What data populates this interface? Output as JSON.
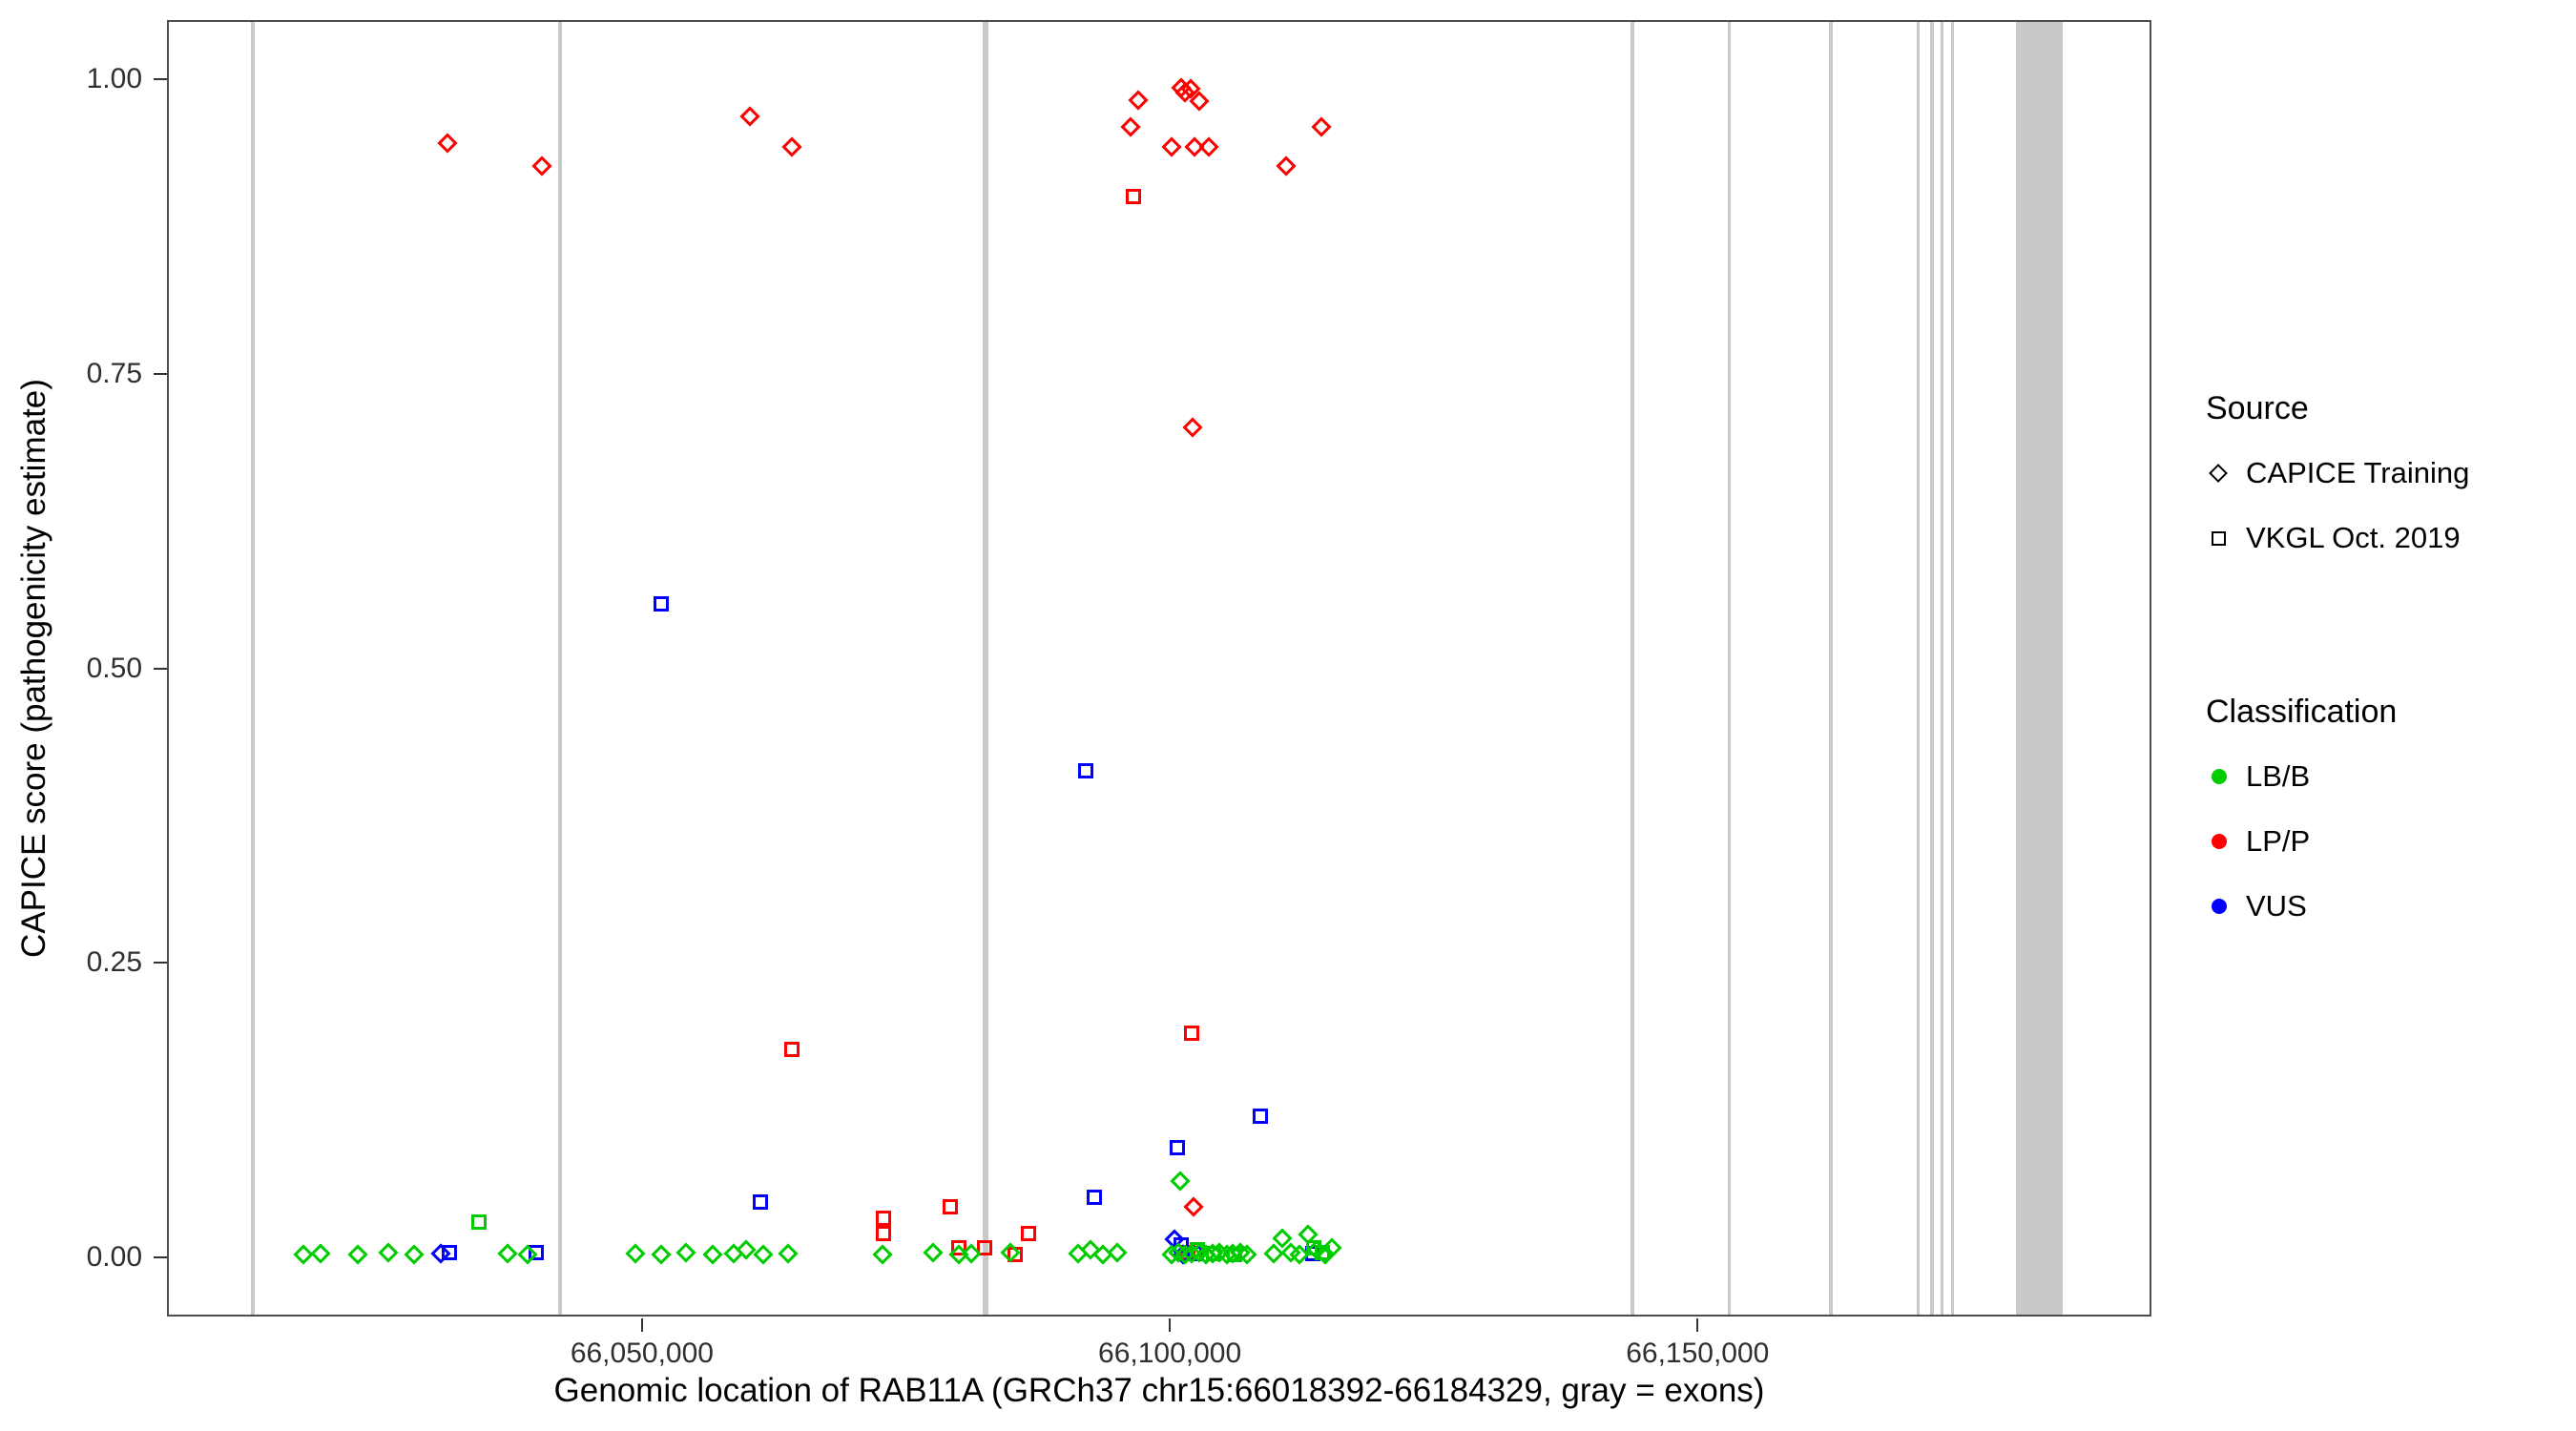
{
  "chart_data": {
    "type": "scatter",
    "title": "",
    "xlabel": "Genomic location of RAB11A (GRCh37 chr15:66018392-66184329, gray = exons)",
    "ylabel": "CAPICE score (pathogenicity estimate)",
    "grid": false,
    "legend_position": "right",
    "x_domain": [
      66005000,
      66193000
    ],
    "y_domain": [
      -0.05,
      1.05
    ],
    "x_ticks": [
      {
        "value": 66050000,
        "label": "66,050,000"
      },
      {
        "value": 66100000,
        "label": "66,100,000"
      },
      {
        "value": 66150000,
        "label": "66,150,000"
      }
    ],
    "y_ticks": [
      {
        "value": 0.0,
        "label": "0.00"
      },
      {
        "value": 0.25,
        "label": "0.25"
      },
      {
        "value": 0.5,
        "label": "0.50"
      },
      {
        "value": 0.75,
        "label": "0.75"
      },
      {
        "value": 1.0,
        "label": "1.00"
      }
    ],
    "exon_color": "#c9c9c9",
    "class_codes": {
      "B": "LB/B",
      "P": "LP/P",
      "V": "VUS"
    },
    "class_colors": {
      "LB/B": "#00cc00",
      "LP/P": "#ff0000",
      "VUS": "#0000ff"
    },
    "source_codes": {
      "T": "CAPICE Training",
      "G": "VKGL Oct. 2019"
    },
    "source_shapes": {
      "CAPICE Training": "diamond",
      "VKGL Oct. 2019": "square"
    },
    "exons": [
      [
        66012800,
        66013150
      ],
      [
        66041850,
        66042200
      ],
      [
        66082100,
        66082600
      ],
      [
        66143450,
        66143800
      ],
      [
        66152650,
        66153000
      ],
      [
        66162300,
        66162650
      ],
      [
        66170550,
        66170900
      ],
      [
        66171850,
        66172200
      ],
      [
        66172800,
        66173150
      ],
      [
        66173800,
        66174150
      ],
      [
        66180000,
        66184400
      ]
    ],
    "points": [
      [
        66031400,
        0.947,
        "P",
        "T"
      ],
      [
        66040300,
        0.928,
        "P",
        "T"
      ],
      [
        66060000,
        0.97,
        "P",
        "T"
      ],
      [
        66064000,
        0.944,
        "P",
        "T"
      ],
      [
        66096100,
        0.961,
        "P",
        "T"
      ],
      [
        66096800,
        0.984,
        "P",
        "T"
      ],
      [
        66100000,
        0.944,
        "P",
        "T"
      ],
      [
        66100900,
        0.994,
        "P",
        "T"
      ],
      [
        66101300,
        0.99,
        "P",
        "T"
      ],
      [
        66101800,
        0.993,
        "P",
        "T"
      ],
      [
        66102600,
        0.983,
        "P",
        "T"
      ],
      [
        66102200,
        0.944,
        "P",
        "T"
      ],
      [
        66103500,
        0.944,
        "P",
        "T"
      ],
      [
        66110800,
        0.928,
        "P",
        "T"
      ],
      [
        66114200,
        0.961,
        "P",
        "T"
      ],
      [
        66102000,
        0.706,
        "P",
        "T"
      ],
      [
        66102100,
        0.045,
        "P",
        "T"
      ],
      [
        66096400,
        0.902,
        "P",
        "G"
      ],
      [
        66064000,
        0.178,
        "P",
        "G"
      ],
      [
        66101900,
        0.192,
        "P",
        "G"
      ],
      [
        66072700,
        0.035,
        "P",
        "G"
      ],
      [
        66072700,
        0.022,
        "P",
        "G"
      ],
      [
        66079000,
        0.045,
        "P",
        "G"
      ],
      [
        66086400,
        0.022,
        "P",
        "G"
      ],
      [
        66079800,
        0.01,
        "P",
        "G"
      ],
      [
        66082300,
        0.01,
        "P",
        "G"
      ],
      [
        66085200,
        0.004,
        "P",
        "G"
      ],
      [
        66101500,
        0.006,
        "P",
        "G"
      ],
      [
        66051600,
        0.556,
        "V",
        "G"
      ],
      [
        66091900,
        0.415,
        "V",
        "G"
      ],
      [
        66108400,
        0.122,
        "V",
        "G"
      ],
      [
        66100500,
        0.095,
        "V",
        "G"
      ],
      [
        66092700,
        0.053,
        "V",
        "G"
      ],
      [
        66061000,
        0.049,
        "V",
        "G"
      ],
      [
        66031600,
        0.006,
        "V",
        "G"
      ],
      [
        66039800,
        0.006,
        "V",
        "G"
      ],
      [
        66100900,
        0.012,
        "V",
        "G"
      ],
      [
        66102200,
        0.005,
        "V",
        "G"
      ],
      [
        66113400,
        0.005,
        "V",
        "G"
      ],
      [
        66030800,
        0.005,
        "V",
        "T"
      ],
      [
        66100300,
        0.017,
        "V",
        "T"
      ],
      [
        66101100,
        0.004,
        "V",
        "T"
      ],
      [
        66034400,
        0.032,
        "B",
        "G"
      ],
      [
        66102400,
        0.008,
        "B",
        "G"
      ],
      [
        66104000,
        0.005,
        "B",
        "G"
      ],
      [
        66113500,
        0.01,
        "B",
        "G"
      ],
      [
        66106000,
        0.004,
        "B",
        "G"
      ],
      [
        66114300,
        0.006,
        "B",
        "G"
      ],
      [
        66017700,
        0.004,
        "B",
        "T"
      ],
      [
        66019400,
        0.005,
        "B",
        "T"
      ],
      [
        66022900,
        0.004,
        "B",
        "T"
      ],
      [
        66025800,
        0.006,
        "B",
        "T"
      ],
      [
        66028200,
        0.004,
        "B",
        "T"
      ],
      [
        66037100,
        0.005,
        "B",
        "T"
      ],
      [
        66039000,
        0.004,
        "B",
        "T"
      ],
      [
        66049200,
        0.005,
        "B",
        "T"
      ],
      [
        66051600,
        0.004,
        "B",
        "T"
      ],
      [
        66054000,
        0.006,
        "B",
        "T"
      ],
      [
        66056500,
        0.004,
        "B",
        "T"
      ],
      [
        66058500,
        0.005,
        "B",
        "T"
      ],
      [
        66059700,
        0.008,
        "B",
        "T"
      ],
      [
        66061300,
        0.004,
        "B",
        "T"
      ],
      [
        66063700,
        0.005,
        "B",
        "T"
      ],
      [
        66072600,
        0.004,
        "B",
        "T"
      ],
      [
        66077400,
        0.006,
        "B",
        "T"
      ],
      [
        66079800,
        0.004,
        "B",
        "T"
      ],
      [
        66081000,
        0.005,
        "B",
        "T"
      ],
      [
        66084700,
        0.006,
        "B",
        "T"
      ],
      [
        66091100,
        0.005,
        "B",
        "T"
      ],
      [
        66092300,
        0.008,
        "B",
        "T"
      ],
      [
        66093500,
        0.004,
        "B",
        "T"
      ],
      [
        66094800,
        0.006,
        "B",
        "T"
      ],
      [
        66100000,
        0.004,
        "B",
        "T"
      ],
      [
        66100600,
        0.006,
        "B",
        "T"
      ],
      [
        66100800,
        0.067,
        "B",
        "T"
      ],
      [
        66101300,
        0.004,
        "B",
        "T"
      ],
      [
        66101900,
        0.005,
        "B",
        "T"
      ],
      [
        66102600,
        0.006,
        "B",
        "T"
      ],
      [
        66103200,
        0.004,
        "B",
        "T"
      ],
      [
        66103900,
        0.005,
        "B",
        "T"
      ],
      [
        66104500,
        0.006,
        "B",
        "T"
      ],
      [
        66105200,
        0.004,
        "B",
        "T"
      ],
      [
        66105800,
        0.005,
        "B",
        "T"
      ],
      [
        66106500,
        0.006,
        "B",
        "T"
      ],
      [
        66107100,
        0.004,
        "B",
        "T"
      ],
      [
        66109700,
        0.005,
        "B",
        "T"
      ],
      [
        66110500,
        0.018,
        "B",
        "T"
      ],
      [
        66111300,
        0.006,
        "B",
        "T"
      ],
      [
        66112100,
        0.004,
        "B",
        "T"
      ],
      [
        66112900,
        0.021,
        "B",
        "T"
      ],
      [
        66113700,
        0.008,
        "B",
        "T"
      ],
      [
        66114500,
        0.004,
        "B",
        "T"
      ],
      [
        66115200,
        0.01,
        "B",
        "T"
      ]
    ]
  },
  "legend": {
    "source": {
      "title": "Source",
      "items": [
        {
          "label": "CAPICE Training",
          "shape": "diamond"
        },
        {
          "label": "VKGL Oct. 2019",
          "shape": "square"
        }
      ]
    },
    "classification": {
      "title": "Classification",
      "items": [
        {
          "label": "LB/B",
          "color": "#00cc00"
        },
        {
          "label": "LP/P",
          "color": "#ff0000"
        },
        {
          "label": "VUS",
          "color": "#0000ff"
        }
      ]
    }
  }
}
